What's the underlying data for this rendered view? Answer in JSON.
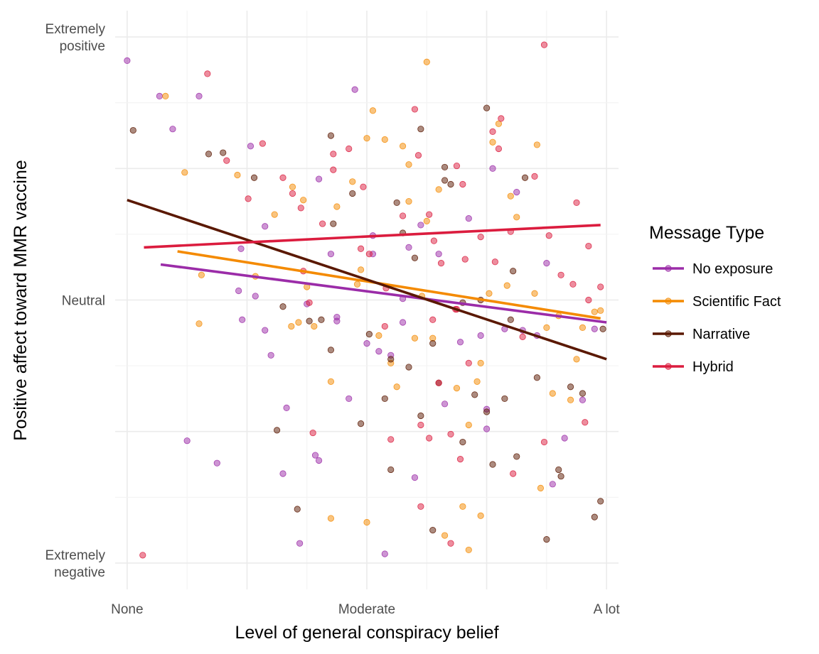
{
  "chart_data": {
    "type": "scatter",
    "title": "",
    "xlabel": "Level of general conspiracy belief",
    "ylabel": "Positive affect toward MMR vaccine",
    "xlim": [
      0.9,
      5.1
    ],
    "ylim": [
      -0.2,
      4.2
    ],
    "x_ticks": [
      {
        "value": 1,
        "label": "None"
      },
      {
        "value": 3,
        "label": "Moderate"
      },
      {
        "value": 5,
        "label": "A lot"
      }
    ],
    "y_ticks": [
      {
        "value": 0,
        "lines": [
          "Extremely",
          "negative"
        ]
      },
      {
        "value": 2,
        "lines": [
          "Neutral"
        ]
      },
      {
        "value": 4,
        "lines": [
          "Extremely",
          "positive"
        ]
      }
    ],
    "grid": true,
    "legend": {
      "title": "Message Type",
      "position": "right",
      "entries": [
        {
          "name": "No exposure",
          "color": "#9B2CA8"
        },
        {
          "name": "Scientific Fact",
          "color": "#F48A00"
        },
        {
          "name": "Narrative",
          "color": "#5A1800"
        },
        {
          "name": "Hybrid",
          "color": "#DB1C3E"
        }
      ]
    },
    "series": [
      {
        "name": "No exposure",
        "color": "#9B2CA8",
        "trend": [
          [
            1.28,
            2.27
          ],
          [
            5.0,
            1.83
          ]
        ],
        "points": [
          [
            1.27,
            3.55
          ],
          [
            1.38,
            3.3
          ],
          [
            1.5,
            0.93
          ],
          [
            1.6,
            3.55
          ],
          [
            1.75,
            0.76
          ],
          [
            1.93,
            2.07
          ],
          [
            2.03,
            3.17
          ],
          [
            2.07,
            2.03
          ],
          [
            1.96,
            1.85
          ],
          [
            2.15,
            1.77
          ],
          [
            2.3,
            0.68
          ],
          [
            2.44,
            0.15
          ],
          [
            2.57,
            0.82
          ],
          [
            2.6,
            0.78
          ],
          [
            2.75,
            1.87
          ],
          [
            3.05,
            2.49
          ],
          [
            3.15,
            0.07
          ],
          [
            3.3,
            1.83
          ],
          [
            3.6,
            2.35
          ],
          [
            3.85,
            2.62
          ],
          [
            4.0,
            1.02
          ],
          [
            4.25,
            2.82
          ],
          [
            4.3,
            1.77
          ],
          [
            4.5,
            2.28
          ],
          [
            4.65,
            0.95
          ],
          [
            4.8,
            1.24
          ],
          [
            4.9,
            1.78
          ],
          [
            3.0,
            1.67
          ],
          [
            3.05,
            2.35
          ],
          [
            3.4,
            0.65
          ],
          [
            2.15,
            2.56
          ],
          [
            1.0,
            3.82
          ],
          [
            1.95,
            2.39
          ],
          [
            2.2,
            1.58
          ],
          [
            2.6,
            2.92
          ],
          [
            2.7,
            2.35
          ],
          [
            3.2,
            1.58
          ],
          [
            3.95,
            1.73
          ],
          [
            4.15,
            1.78
          ],
          [
            3.45,
            2.57
          ],
          [
            4.0,
            1.17
          ],
          [
            3.65,
            1.21
          ],
          [
            2.75,
            1.84
          ],
          [
            2.9,
            3.6
          ],
          [
            4.55,
            0.6
          ],
          [
            3.78,
            1.68
          ],
          [
            2.5,
            1.97
          ],
          [
            3.35,
            2.4
          ],
          [
            2.33,
            1.18
          ],
          [
            4.42,
            1.73
          ],
          [
            3.1,
            1.61
          ],
          [
            2.85,
            1.25
          ],
          [
            3.3,
            2.01
          ],
          [
            4.05,
            3.0
          ]
        ]
      },
      {
        "name": "Scientific Fact",
        "color": "#F48A00",
        "trend": [
          [
            1.42,
            2.37
          ],
          [
            4.95,
            1.86
          ]
        ],
        "points": [
          [
            1.32,
            3.55
          ],
          [
            1.48,
            2.97
          ],
          [
            1.92,
            2.95
          ],
          [
            1.62,
            2.19
          ],
          [
            2.07,
            2.18
          ],
          [
            1.6,
            1.82
          ],
          [
            2.23,
            2.65
          ],
          [
            2.37,
            1.8
          ],
          [
            2.38,
            2.86
          ],
          [
            2.43,
            1.83
          ],
          [
            2.47,
            2.76
          ],
          [
            2.56,
            1.8
          ],
          [
            2.75,
            2.71
          ],
          [
            2.88,
            2.9
          ],
          [
            3.0,
            3.23
          ],
          [
            3.05,
            3.44
          ],
          [
            3.15,
            3.22
          ],
          [
            3.3,
            3.17
          ],
          [
            3.35,
            2.75
          ],
          [
            3.4,
            1.71
          ],
          [
            3.46,
            2.03
          ],
          [
            3.5,
            2.6
          ],
          [
            3.55,
            1.71
          ],
          [
            3.6,
            2.84
          ],
          [
            3.8,
            0.43
          ],
          [
            3.85,
            1.05
          ],
          [
            3.92,
            1.38
          ],
          [
            4.02,
            2.05
          ],
          [
            4.1,
            3.34
          ],
          [
            4.17,
            2.11
          ],
          [
            4.25,
            2.63
          ],
          [
            4.4,
            2.05
          ],
          [
            4.5,
            1.79
          ],
          [
            4.55,
            1.29
          ],
          [
            4.7,
            1.24
          ],
          [
            4.8,
            1.79
          ],
          [
            4.9,
            1.91
          ],
          [
            4.95,
            1.92
          ],
          [
            4.6,
            1.88
          ],
          [
            3.85,
            0.1
          ],
          [
            3.0,
            0.31
          ],
          [
            2.7,
            0.34
          ],
          [
            3.2,
            1.52
          ],
          [
            4.45,
            0.57
          ],
          [
            3.65,
            0.21
          ],
          [
            3.75,
            1.33
          ],
          [
            3.95,
            1.52
          ],
          [
            2.95,
            2.23
          ],
          [
            4.42,
            3.18
          ],
          [
            3.35,
            3.03
          ],
          [
            4.75,
            1.55
          ],
          [
            2.92,
            2.12
          ],
          [
            3.5,
            3.81
          ],
          [
            3.1,
            1.73
          ],
          [
            3.25,
            1.34
          ],
          [
            2.5,
            2.1
          ],
          [
            2.7,
            1.38
          ],
          [
            3.95,
            0.36
          ],
          [
            4.2,
            2.79
          ],
          [
            4.05,
            3.2
          ]
        ]
      },
      {
        "name": "Narrative",
        "color": "#5A1800",
        "trend": [
          [
            1.0,
            2.76
          ],
          [
            5.0,
            1.55
          ]
        ],
        "points": [
          [
            1.05,
            3.29
          ],
          [
            1.68,
            3.11
          ],
          [
            1.8,
            3.12
          ],
          [
            2.06,
            2.93
          ],
          [
            2.3,
            1.95
          ],
          [
            2.52,
            1.84
          ],
          [
            2.62,
            1.85
          ],
          [
            2.7,
            1.62
          ],
          [
            2.72,
            2.58
          ],
          [
            2.88,
            2.81
          ],
          [
            3.0,
            4.43
          ],
          [
            3.02,
            1.74
          ],
          [
            3.15,
            1.25
          ],
          [
            3.25,
            2.74
          ],
          [
            3.3,
            2.51
          ],
          [
            3.4,
            2.32
          ],
          [
            3.55,
            1.67
          ],
          [
            3.65,
            2.91
          ],
          [
            3.7,
            2.88
          ],
          [
            3.8,
            1.98
          ],
          [
            3.9,
            1.28
          ],
          [
            4.0,
            1.15
          ],
          [
            4.15,
            1.25
          ],
          [
            4.2,
            1.85
          ],
          [
            4.32,
            2.93
          ],
          [
            4.42,
            1.41
          ],
          [
            4.5,
            0.18
          ],
          [
            4.62,
            0.66
          ],
          [
            4.7,
            1.34
          ],
          [
            4.8,
            1.29
          ],
          [
            4.9,
            0.35
          ],
          [
            4.97,
            1.78
          ],
          [
            3.55,
            0.25
          ],
          [
            3.65,
            3.01
          ],
          [
            3.35,
            1.49
          ],
          [
            3.2,
            1.55
          ],
          [
            2.95,
            1.06
          ],
          [
            4.05,
            0.75
          ],
          [
            2.42,
            0.41
          ],
          [
            3.45,
            3.3
          ],
          [
            4.22,
            2.22
          ],
          [
            4.0,
            3.46
          ],
          [
            2.7,
            3.25
          ],
          [
            3.95,
            2.0
          ],
          [
            4.25,
            0.81
          ],
          [
            4.6,
            0.71
          ],
          [
            3.45,
            1.12
          ],
          [
            3.8,
            0.92
          ],
          [
            2.25,
            1.01
          ],
          [
            3.2,
            0.71
          ],
          [
            3.6,
            1.37
          ],
          [
            4.95,
            0.47
          ]
        ]
      },
      {
        "name": "Hybrid",
        "color": "#DB1C3E",
        "trend": [
          [
            1.14,
            2.4
          ],
          [
            4.95,
            2.57
          ]
        ],
        "points": [
          [
            1.13,
            0.06
          ],
          [
            1.67,
            3.72
          ],
          [
            1.83,
            3.06
          ],
          [
            2.01,
            2.77
          ],
          [
            2.13,
            3.19
          ],
          [
            2.3,
            2.93
          ],
          [
            2.38,
            2.81
          ],
          [
            2.47,
            2.22
          ],
          [
            2.52,
            1.98
          ],
          [
            2.63,
            2.58
          ],
          [
            2.72,
            3.11
          ],
          [
            2.85,
            3.15
          ],
          [
            2.97,
            2.86
          ],
          [
            3.02,
            2.35
          ],
          [
            3.16,
            2.09
          ],
          [
            3.3,
            2.64
          ],
          [
            3.4,
            3.45
          ],
          [
            3.43,
            3.1
          ],
          [
            3.56,
            2.45
          ],
          [
            3.62,
            2.28
          ],
          [
            3.74,
            1.93
          ],
          [
            3.82,
            2.31
          ],
          [
            3.95,
            2.48
          ],
          [
            4.07,
            2.29
          ],
          [
            4.1,
            3.15
          ],
          [
            4.2,
            2.52
          ],
          [
            4.4,
            2.94
          ],
          [
            4.52,
            2.49
          ],
          [
            4.62,
            2.19
          ],
          [
            4.75,
            2.74
          ],
          [
            4.85,
            2.41
          ],
          [
            4.95,
            2.1
          ],
          [
            3.45,
            0.43
          ],
          [
            3.6,
            1.37
          ],
          [
            3.7,
            0.15
          ],
          [
            3.78,
            0.79
          ],
          [
            4.22,
            0.68
          ],
          [
            2.55,
            0.99
          ],
          [
            3.52,
            0.95
          ],
          [
            3.7,
            0.98
          ],
          [
            4.12,
            3.38
          ],
          [
            3.55,
            1.85
          ],
          [
            3.8,
            2.88
          ],
          [
            3.2,
            0.94
          ],
          [
            2.95,
            2.39
          ],
          [
            4.48,
            0.92
          ],
          [
            3.85,
            1.52
          ],
          [
            4.48,
            3.94
          ],
          [
            3.52,
            2.65
          ],
          [
            4.72,
            2.12
          ],
          [
            4.3,
            1.72
          ],
          [
            2.45,
            2.7
          ],
          [
            3.15,
            1.8
          ],
          [
            3.45,
            1.05
          ],
          [
            3.75,
            1.93
          ],
          [
            4.82,
            1.07
          ],
          [
            4.85,
            2.0
          ],
          [
            2.72,
            2.99
          ],
          [
            3.75,
            3.02
          ],
          [
            4.05,
            3.28
          ]
        ]
      }
    ]
  }
}
